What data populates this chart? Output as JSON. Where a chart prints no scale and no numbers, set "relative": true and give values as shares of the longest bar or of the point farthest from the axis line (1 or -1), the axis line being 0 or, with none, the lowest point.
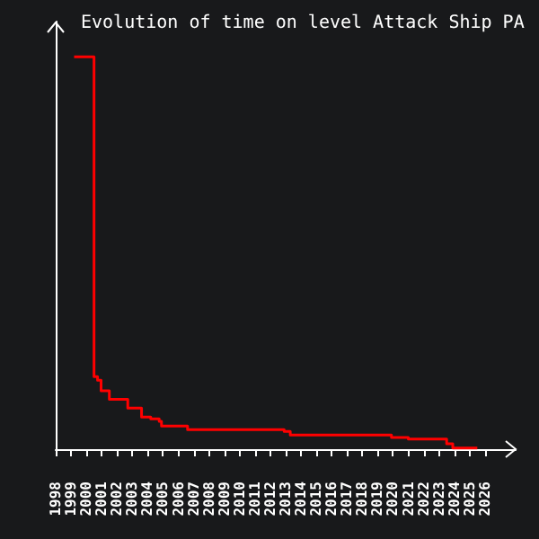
{
  "chart_data": {
    "type": "step",
    "title": "Evolution of time on level Attack Ship PA",
    "relative": true,
    "color": "#ff0000",
    "x": [
      1999.2,
      2000.5,
      2000.73,
      2000.96,
      2001.5,
      2002.7,
      2003.6,
      2004.2,
      2004.75,
      2004.9,
      2006.6,
      2012.9,
      2013.3,
      2019.9,
      2021.0,
      2023.5,
      2023.9,
      2025.5
    ],
    "values": [
      1,
      0.185,
      0.176,
      0.149,
      0.127,
      0.105,
      0.082,
      0.077,
      0.071,
      0.059,
      0.05,
      0.045,
      0.036,
      0.03,
      0.026,
      0.014,
      0.003,
      0.003
    ],
    "xlim": [
      1998,
      2028
    ],
    "xticks": [
      1998,
      1999,
      2000,
      2001,
      2002,
      2003,
      2004,
      2005,
      2006,
      2007,
      2008,
      2009,
      2010,
      2011,
      2012,
      2013,
      2014,
      2015,
      2016,
      2017,
      2018,
      2019,
      2020,
      2021,
      2022,
      2023,
      2024,
      2025,
      2026
    ],
    "marker": "none"
  }
}
